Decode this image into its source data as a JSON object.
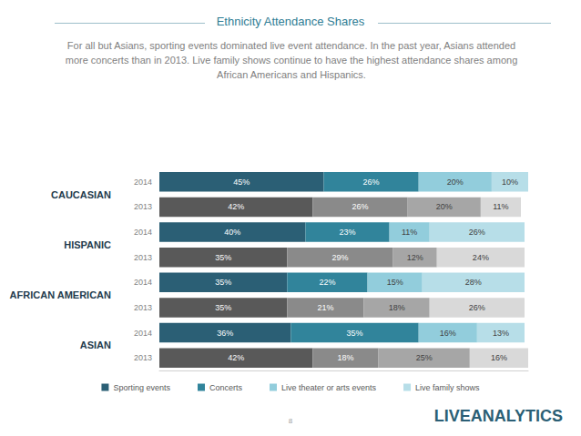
{
  "chart_data": {
    "type": "bar",
    "title": "Ethnicity Attendance Shares",
    "subtitle": "For all but Asians, sporting events dominated live event attendance. In the past year, Asians attended more concerts than in 2013. Live family shows continue to have the highest attendance shares among African Americans and Hispanics.",
    "orientation": "horizontal",
    "stacked": true,
    "data_labels": true,
    "tick_labels": "y",
    "grid": false,
    "legend": "bottom",
    "groups": [
      "CAUCASIAN",
      "HISPANIC",
      "AFRICAN AMERICAN",
      "ASIAN"
    ],
    "categories": [
      "2014",
      "2013",
      "2014",
      "2013",
      "2014",
      "2013",
      "2014",
      "2013"
    ],
    "xlim": [
      0,
      101
    ],
    "xticks": [],
    "series": [
      {
        "name": "Sporting events",
        "color": "#2b5f75",
        "colors": [
          "#2b5f75",
          "#595959",
          "#2b5f75",
          "#595959",
          "#2b5f75",
          "#595959",
          "#2b5f75",
          "#595959"
        ],
        "values": [
          45,
          42,
          40,
          35,
          35,
          35,
          36,
          42
        ],
        "value_labels": [
          "45%",
          "42%",
          "40%",
          "35%",
          "35%",
          "35%",
          "36%",
          "42%"
        ]
      },
      {
        "name": "Concerts",
        "color": "#31849b",
        "colors": [
          "#31849b",
          "#8a8a8a",
          "#31849b",
          "#8a8a8a",
          "#31849b",
          "#8a8a8a",
          "#31849b",
          "#8a8a8a"
        ],
        "values": [
          26,
          26,
          23,
          29,
          22,
          21,
          35,
          18
        ],
        "value_labels": [
          "26%",
          "26%",
          "23%",
          "29%",
          "22%",
          "21%",
          "35%",
          "18%"
        ]
      },
      {
        "name": "Live theater or arts events",
        "color": "#92cddc",
        "colors": [
          "#92cddc",
          "#a6a6a6",
          "#92cddc",
          "#a6a6a6",
          "#92cddc",
          "#a6a6a6",
          "#92cddc",
          "#a6a6a6"
        ],
        "values": [
          20,
          20,
          11,
          12,
          15,
          18,
          16,
          25
        ],
        "value_labels": [
          "20%",
          "20%",
          "11%",
          "12%",
          "15%",
          "18%",
          "16%",
          "25%"
        ]
      },
      {
        "name": "Live family shows",
        "color": "#b7dee8",
        "colors": [
          "#b7dee8",
          "#d9d9d9",
          "#b7dee8",
          "#d9d9d9",
          "#b7dee8",
          "#d9d9d9",
          "#b7dee8",
          "#d9d9d9"
        ],
        "values": [
          10,
          11,
          26,
          24,
          28,
          26,
          13,
          16
        ],
        "value_labels": [
          "10%",
          "11%",
          "26%",
          "24%",
          "28%",
          "26%",
          "13%",
          "16%"
        ]
      }
    ],
    "annotations": [
      "8",
      "LIVEANALYTICS"
    ]
  }
}
